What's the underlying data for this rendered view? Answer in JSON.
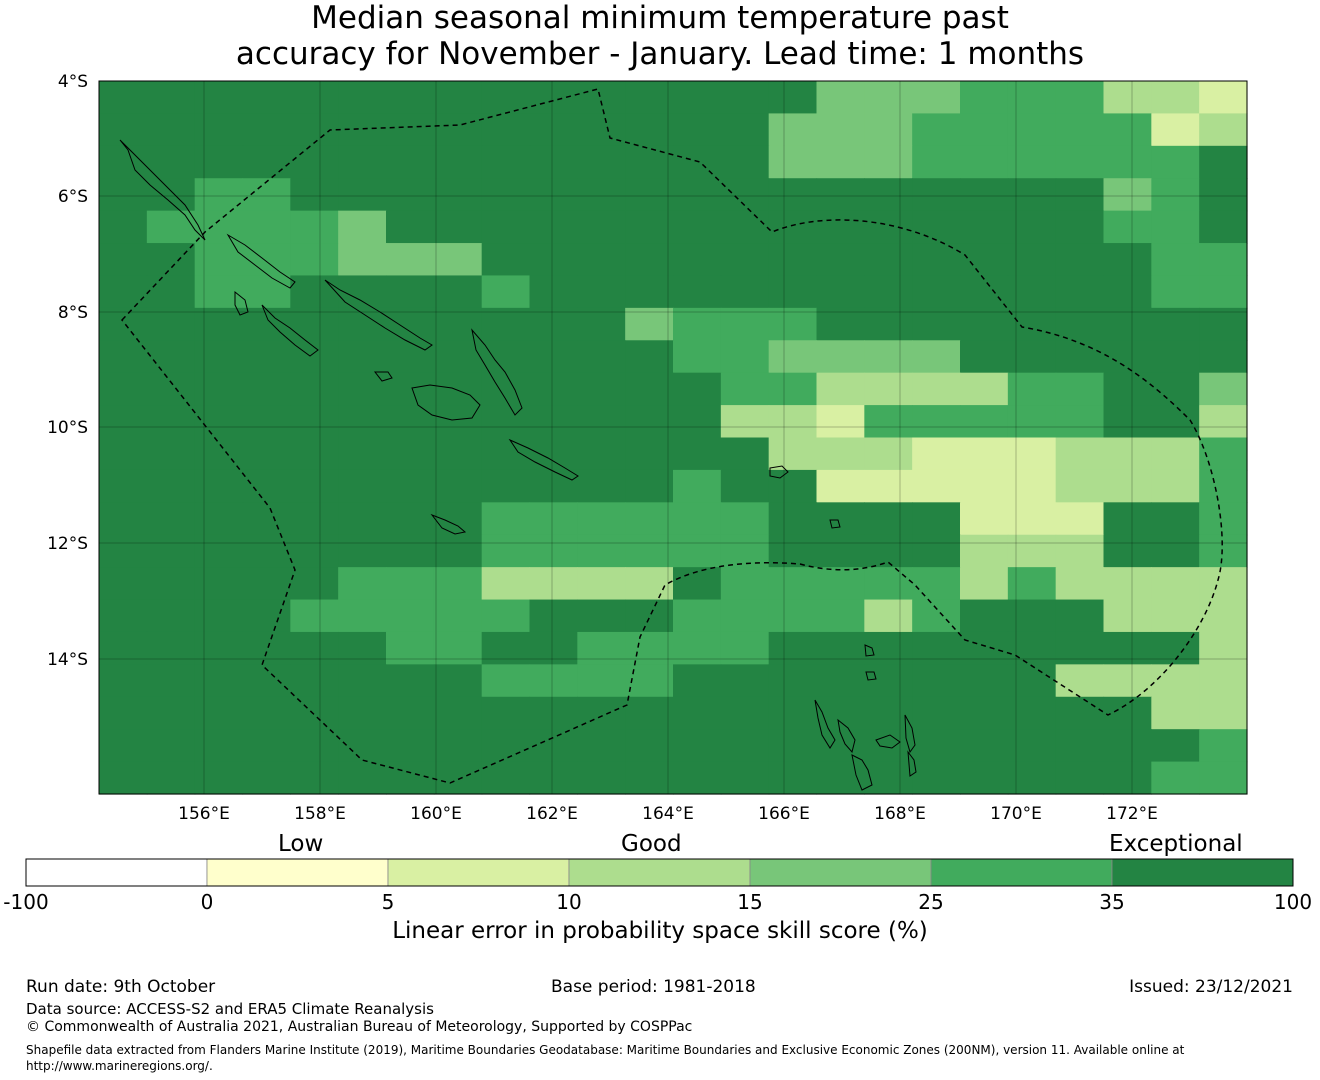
{
  "title": {
    "line1": "Median seasonal minimum temperature past",
    "line2": "accuracy for November - January. Lead time: 1 months"
  },
  "map": {
    "lat_labels": [
      "4°S",
      "6°S",
      "8°S",
      "10°S",
      "12°S",
      "14°S"
    ],
    "lon_labels": [
      "156°E",
      "158°E",
      "160°E",
      "162°E",
      "164°E",
      "166°E",
      "168°E",
      "170°E",
      "172°E"
    ],
    "grid": [
      "000000000000000444333221",
      "000000000000004443333312",
      "000000000000004443333330",
      "003300000000000000000430",
      "033334000000000000000330",
      "003334440000000000000033",
      "003300003000000000000033",
      "000000000004333000000000",
      "000000000000334444000000",
      "000000000000033222233004",
      "000000000000022133333002",
      "000000000000002221112223",
      "000000000000300111112223",
      "000000003333330000111003",
      "000000003333330000222003",
      "000003332222033333232222",
      "000033333000333323000222",
      "000000330033330000000002",
      "000000003333000000002222",
      "000000000000000000000022",
      "000000000000000000000003",
      "000000000000000000000033"
    ]
  },
  "colorbar": {
    "category_labels": [
      "Low",
      "Good",
      "Exceptional"
    ],
    "ticks": [
      "-100",
      "0",
      "5",
      "10",
      "15",
      "25",
      "35",
      "100"
    ],
    "colors": [
      "#ffffff",
      "#ffffcc",
      "#d9f0a3",
      "#addd8e",
      "#78c679",
      "#41ab5d",
      "#238443"
    ],
    "title": "Linear error in probability space skill score (%)"
  },
  "footer": {
    "run_date": "Run date: 9th October",
    "base_period": "Base period: 1981-2018",
    "issued": "Issued: 23/12/2021",
    "data_source": "Data source: ACCESS-S2 and ERA5 Climate Reanalysis",
    "copyright": "© Commonwealth of Australia 2021, Australian Bureau of Meteorology, Supported by COSPPac",
    "shapefile_line1": "Shapefile data extracted from Flanders Marine Institute (2019), Maritime Boundaries Geodatabase: Maritime Boundaries and Exclusive Economic Zones (200NM), version 11. Available online at",
    "shapefile_line2": "http://www.marineregions.org/."
  }
}
